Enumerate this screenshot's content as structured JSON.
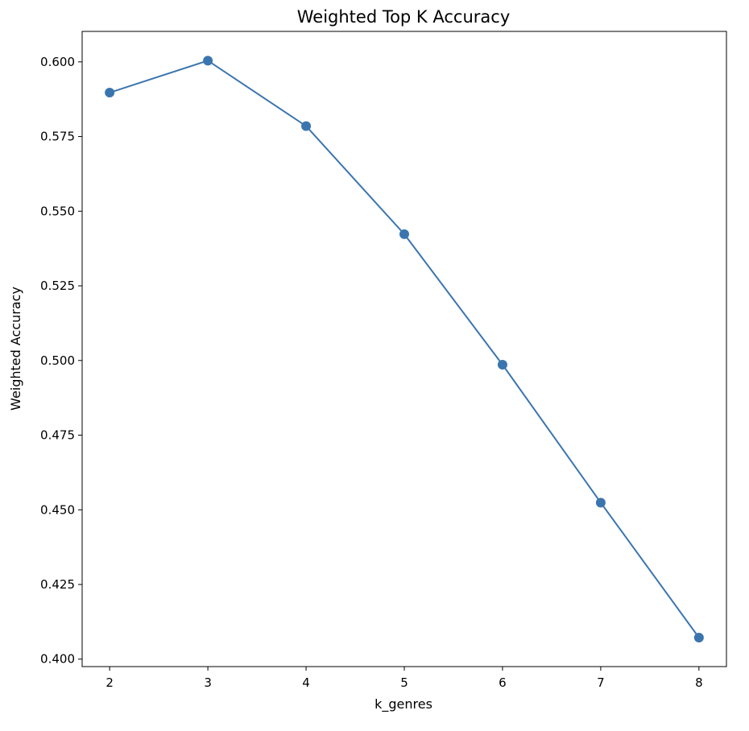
{
  "chart_data": {
    "type": "line",
    "title": "Weighted Top K Accuracy",
    "xlabel": "k_genres",
    "ylabel": "Weighted Accuracy",
    "x": [
      2,
      3,
      4,
      5,
      6,
      7,
      8
    ],
    "series": [
      {
        "values": [
          0.5897,
          0.6004,
          0.5785,
          0.5423,
          0.4986,
          0.4524,
          0.4072
        ],
        "color": "#3b75af"
      }
    ],
    "xlim": [
      1.72,
      8.28
    ],
    "ylim": [
      0.3975,
      0.6102
    ],
    "xticks": [
      2,
      3,
      4,
      5,
      6,
      7,
      8
    ],
    "xtick_labels": [
      "2",
      "3",
      "4",
      "5",
      "6",
      "7",
      "8"
    ],
    "yticks": [
      0.4,
      0.425,
      0.45,
      0.475,
      0.5,
      0.525,
      0.55,
      0.575,
      0.6
    ],
    "ytick_labels": [
      "0.400",
      "0.425",
      "0.450",
      "0.475",
      "0.500",
      "0.525",
      "0.550",
      "0.575",
      "0.600"
    ],
    "grid": false,
    "legend": "none",
    "markers": "circle"
  }
}
